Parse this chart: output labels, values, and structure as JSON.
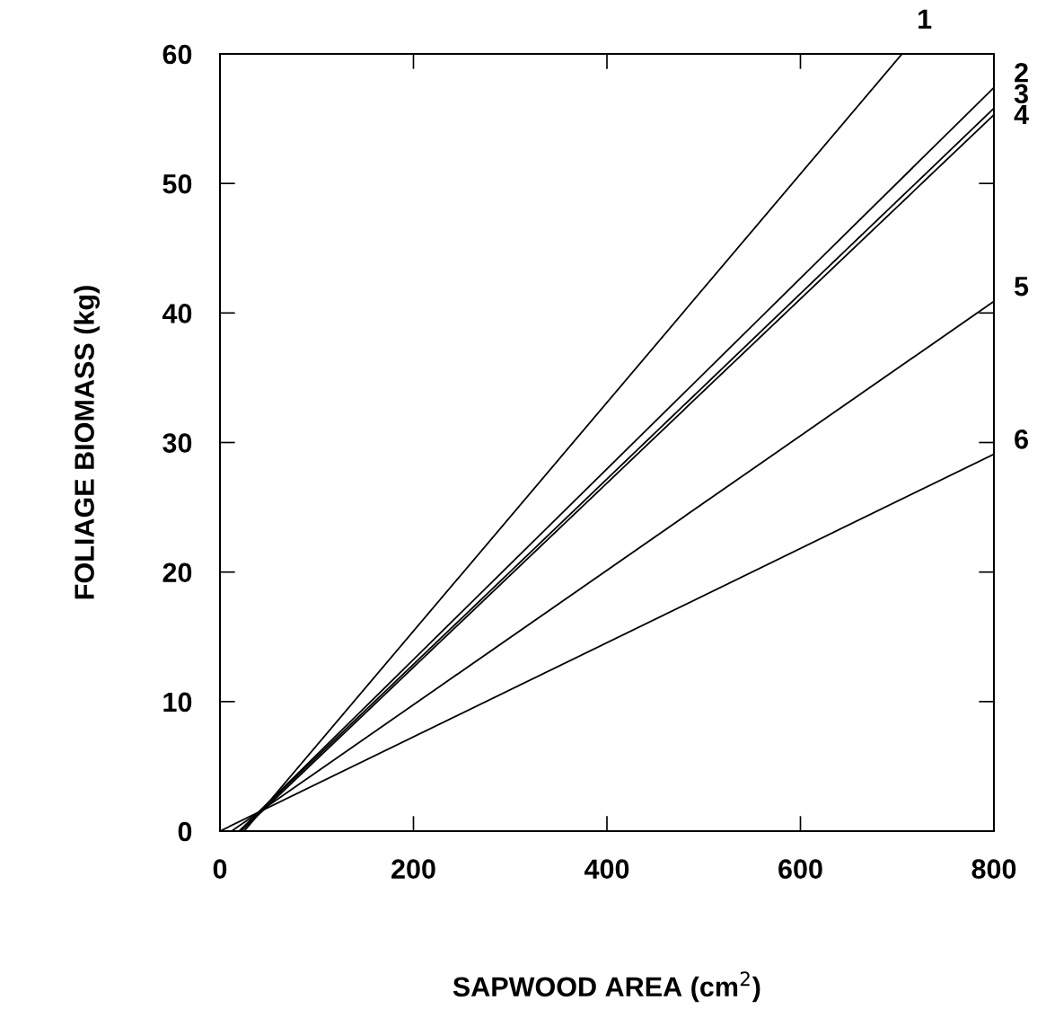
{
  "chart_data": {
    "type": "line",
    "xlabel": "SAPWOOD AREA (cm$^{2}$)",
    "ylabel": "FOLIAGE BIOMASS (kg)",
    "xlim": [
      0,
      800
    ],
    "ylim": [
      0,
      60
    ],
    "xticks": [
      0,
      200,
      400,
      600,
      800
    ],
    "yticks": [
      0,
      10,
      20,
      30,
      40,
      50,
      60
    ],
    "grid": false,
    "marker": "none",
    "line_style": "solid",
    "series": [
      {
        "name": "1",
        "color": "#000000",
        "x": [
          25,
          705
        ],
        "values": [
          0,
          60
        ]
      },
      {
        "name": "2",
        "color": "#000000",
        "x": [
          20,
          800
        ],
        "values": [
          0,
          57.4
        ]
      },
      {
        "name": "3",
        "color": "#000000",
        "x": [
          20,
          800
        ],
        "values": [
          0,
          55.8
        ]
      },
      {
        "name": "4",
        "color": "#000000",
        "x": [
          22,
          800
        ],
        "values": [
          0,
          55.3
        ]
      },
      {
        "name": "5",
        "color": "#000000",
        "x": [
          12,
          800
        ],
        "values": [
          0,
          40.9
        ]
      },
      {
        "name": "6",
        "color": "#000000",
        "x": [
          0,
          800
        ],
        "values": [
          0,
          29.1
        ]
      }
    ]
  }
}
